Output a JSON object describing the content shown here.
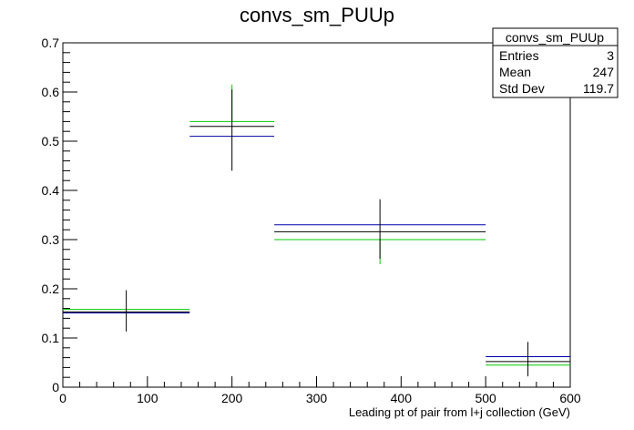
{
  "chart_data": {
    "type": "scatter",
    "title": "convs_sm_PUUp",
    "xlabel": "Leading pt of pair from l+j collection (GeV)",
    "ylabel": "",
    "xlim": [
      0,
      600
    ],
    "ylim": [
      0,
      0.7
    ],
    "x_ticks": [
      "0",
      "100",
      "200",
      "300",
      "400",
      "500",
      "600"
    ],
    "y_ticks": [
      "0",
      "0.1",
      "0.2",
      "0.3",
      "0.4",
      "0.5",
      "0.6",
      "0.7"
    ],
    "bins": [
      [
        0,
        150
      ],
      [
        150,
        250
      ],
      [
        250,
        500
      ],
      [
        500,
        600
      ]
    ],
    "series": [
      {
        "color": "#000000",
        "values": [
          0.153,
          0.53,
          0.316,
          0.052
        ],
        "err_low": [
          0.04,
          0.09,
          0.055,
          0.03
        ],
        "err_high": [
          0.044,
          0.075,
          0.066,
          0.04
        ]
      },
      {
        "color": "#0000aa",
        "values": [
          0.151,
          0.51,
          0.33,
          0.062
        ],
        "err_low": [],
        "err_high": []
      },
      {
        "color": "#00cc00",
        "values": [
          0.158,
          0.54,
          0.3,
          0.045
        ],
        "err_low": [
          0.0,
          0.0,
          0.05,
          0.0
        ],
        "err_high": [
          0.0,
          0.075,
          0.0,
          0.0
        ]
      }
    ]
  },
  "stats": {
    "name": "convs_sm_PUUp",
    "rows": [
      {
        "label": "Entries",
        "value": "3"
      },
      {
        "label": "Mean",
        "value": "247"
      },
      {
        "label": "Std Dev",
        "value": "119.7"
      }
    ]
  }
}
